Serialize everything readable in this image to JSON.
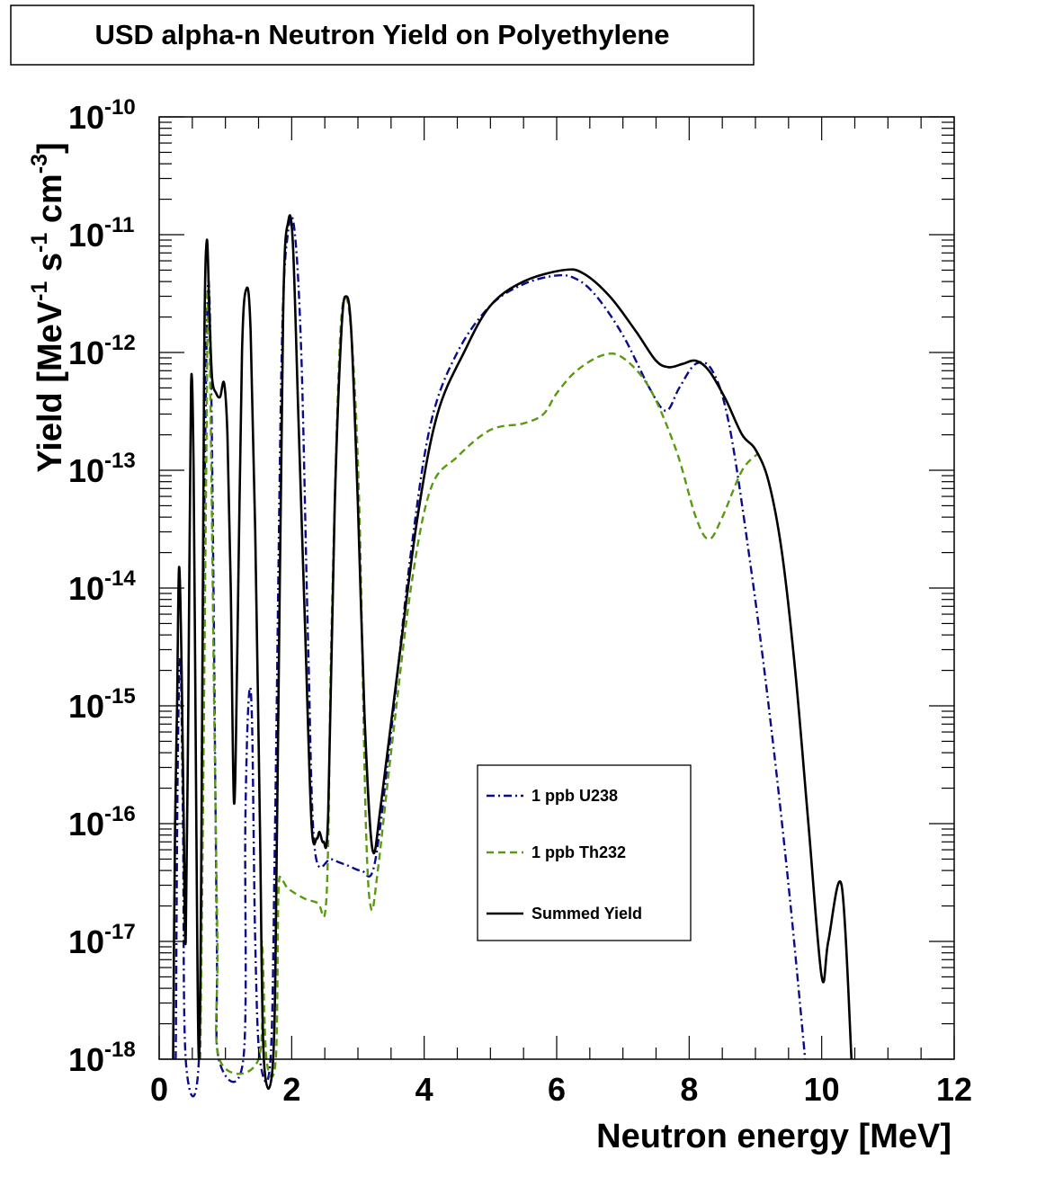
{
  "chart_data": {
    "type": "line",
    "title": "USD alpha-n Neutron Yield on Polyethylene",
    "xlabel": "Neutron energy [MeV]",
    "ylabel": {
      "base": "Yield [MeV",
      "e1": "-1",
      "mid1": " s",
      "e2": "-1",
      "mid2": " cm",
      "e3": "-3",
      "end": "]"
    },
    "xlim": [
      0,
      12
    ],
    "ylim": [
      1e-18,
      1e-10
    ],
    "yscale": "log",
    "grid": false,
    "legend_position": "center-right",
    "x_ticks": [
      {
        "value": 0,
        "label": "0"
      },
      {
        "value": 2,
        "label": "2"
      },
      {
        "value": 4,
        "label": "4"
      },
      {
        "value": 6,
        "label": "6"
      },
      {
        "value": 8,
        "label": "8"
      },
      {
        "value": 10,
        "label": "10"
      },
      {
        "value": 12,
        "label": "12"
      }
    ],
    "y_ticks": [
      {
        "exp": -18,
        "base": "10",
        "sup": "-18"
      },
      {
        "exp": -17,
        "base": "10",
        "sup": "-17"
      },
      {
        "exp": -16,
        "base": "10",
        "sup": "-16"
      },
      {
        "exp": -15,
        "base": "10",
        "sup": "-15"
      },
      {
        "exp": -14,
        "base": "10",
        "sup": "-14"
      },
      {
        "exp": -13,
        "base": "10",
        "sup": "-13"
      },
      {
        "exp": -12,
        "base": "10",
        "sup": "-12"
      },
      {
        "exp": -11,
        "base": "10",
        "sup": "-11"
      },
      {
        "exp": -10,
        "base": "10",
        "sup": "-10"
      }
    ],
    "series": [
      {
        "name": "1 ppb U238",
        "color": "#0a0a8c",
        "style": "dashdot",
        "points": [
          [
            0.25,
            1e-18
          ],
          [
            0.28,
            3e-16
          ],
          [
            0.32,
            2.5e-15
          ],
          [
            0.36,
            1e-16
          ],
          [
            0.4,
            1e-18
          ],
          [
            0.6,
            1e-18
          ],
          [
            0.65,
            1e-15
          ],
          [
            0.7,
            3e-13
          ],
          [
            0.74,
            4e-12
          ],
          [
            0.78,
            8e-13
          ],
          [
            0.82,
            1e-14
          ],
          [
            0.87,
            1e-17
          ],
          [
            0.9,
            1e-18
          ],
          [
            1.27,
            1e-18
          ],
          [
            1.3,
            1e-16
          ],
          [
            1.35,
            1.1e-15
          ],
          [
            1.4,
            8e-16
          ],
          [
            1.45,
            1e-17
          ],
          [
            1.52,
            1e-18
          ],
          [
            1.68,
            1e-18
          ],
          [
            1.75,
            1e-16
          ],
          [
            1.85,
            1e-12
          ],
          [
            1.95,
            1.1e-11
          ],
          [
            2.05,
            1e-11
          ],
          [
            2.15,
            8e-13
          ],
          [
            2.25,
            3e-15
          ],
          [
            2.35,
            6e-17
          ],
          [
            2.6,
            5e-17
          ],
          [
            2.85,
            4.4e-17
          ],
          [
            3.05,
            4e-17
          ],
          [
            3.25,
            4.5e-17
          ],
          [
            3.5,
            6e-16
          ],
          [
            3.8,
            2e-14
          ],
          [
            4.1,
            2.5e-13
          ],
          [
            4.5,
            1e-12
          ],
          [
            5.0,
            2.5e-12
          ],
          [
            5.5,
            3.8e-12
          ],
          [
            6.0,
            4.5e-12
          ],
          [
            6.3,
            4.2e-12
          ],
          [
            6.6,
            3e-12
          ],
          [
            7.0,
            1.4e-12
          ],
          [
            7.4,
            5e-13
          ],
          [
            7.65,
            3.2e-13
          ],
          [
            7.85,
            5e-13
          ],
          [
            8.1,
            8e-13
          ],
          [
            8.35,
            7e-13
          ],
          [
            8.6,
            2.5e-13
          ],
          [
            8.9,
            2e-14
          ],
          [
            9.2,
            1e-15
          ],
          [
            9.5,
            3e-17
          ],
          [
            9.75,
            1e-18
          ]
        ]
      },
      {
        "name": "1 ppb Th232",
        "color": "#5a9a12",
        "style": "dashed",
        "points": [
          [
            0.62,
            1e-18
          ],
          [
            0.66,
            1e-16
          ],
          [
            0.71,
            1e-13
          ],
          [
            0.74,
            3.5e-12
          ],
          [
            0.78,
            2e-13
          ],
          [
            0.83,
            1e-15
          ],
          [
            0.88,
            1e-17
          ],
          [
            0.91,
            1e-18
          ],
          [
            1.5,
            1e-18
          ],
          [
            1.55,
            1e-17
          ],
          [
            1.62,
            1e-18
          ],
          [
            1.76,
            1e-18
          ],
          [
            1.8,
            2.5e-17
          ],
          [
            1.85,
            3.3e-17
          ],
          [
            1.95,
            2.8e-17
          ],
          [
            2.2,
            2.3e-17
          ],
          [
            2.4,
            2.1e-17
          ],
          [
            2.5,
            1.7e-17
          ],
          [
            2.55,
            6.5e-17
          ],
          [
            2.6,
            4e-15
          ],
          [
            2.72,
            1e-12
          ],
          [
            2.82,
            2.9e-12
          ],
          [
            2.92,
            1e-12
          ],
          [
            3.02,
            5e-14
          ],
          [
            3.12,
            1e-16
          ],
          [
            3.2,
            1.9e-17
          ],
          [
            3.3,
            4e-17
          ],
          [
            3.5,
            4e-16
          ],
          [
            3.8,
            1e-14
          ],
          [
            4.1,
            7e-14
          ],
          [
            4.5,
            1.3e-13
          ],
          [
            5.0,
            2.2e-13
          ],
          [
            5.5,
            2.5e-13
          ],
          [
            5.8,
            3e-13
          ],
          [
            6.0,
            4.5e-13
          ],
          [
            6.3,
            7e-13
          ],
          [
            6.7,
            9.5e-13
          ],
          [
            7.0,
            9e-13
          ],
          [
            7.4,
            5e-13
          ],
          [
            7.8,
            1.5e-13
          ],
          [
            8.1,
            4e-14
          ],
          [
            8.3,
            2.6e-14
          ],
          [
            8.5,
            4e-14
          ],
          [
            8.8,
            1e-13
          ],
          [
            9.05,
            1.4e-13
          ]
        ]
      },
      {
        "name": "Summed Yield",
        "color": "#000000",
        "style": "solid",
        "points": [
          [
            0.21,
            1e-18
          ],
          [
            0.24,
            1e-16
          ],
          [
            0.27,
            1e-15
          ],
          [
            0.3,
            1.5e-14
          ],
          [
            0.34,
            2e-15
          ],
          [
            0.37,
            1e-16
          ],
          [
            0.4,
            1e-17
          ],
          [
            0.44,
            1e-15
          ],
          [
            0.48,
            5e-13
          ],
          [
            0.52,
            1e-13
          ],
          [
            0.56,
            1e-16
          ],
          [
            0.6,
            1e-18
          ],
          [
            0.64,
            1e-16
          ],
          [
            0.68,
            1e-12
          ],
          [
            0.72,
            9e-12
          ],
          [
            0.76,
            2e-12
          ],
          [
            0.8,
            6e-13
          ],
          [
            0.86,
            4.5e-13
          ],
          [
            0.92,
            4.2e-13
          ],
          [
            0.98,
            5.5e-13
          ],
          [
            1.03,
            2e-13
          ],
          [
            1.08,
            1e-14
          ],
          [
            1.13,
            1.5e-16
          ],
          [
            1.18,
            3e-15
          ],
          [
            1.25,
            1e-12
          ],
          [
            1.32,
            3.5e-12
          ],
          [
            1.38,
            1.5e-12
          ],
          [
            1.45,
            3e-14
          ],
          [
            1.52,
            1e-16
          ],
          [
            1.58,
            1e-18
          ],
          [
            1.72,
            1e-18
          ],
          [
            1.78,
            1e-16
          ],
          [
            1.87,
            2e-12
          ],
          [
            1.95,
            1.3e-11
          ],
          [
            2.02,
            8e-12
          ],
          [
            2.1,
            3e-13
          ],
          [
            2.2,
            5e-15
          ],
          [
            2.3,
            1e-16
          ],
          [
            2.38,
            7.5e-17
          ],
          [
            2.42,
            8.5e-17
          ],
          [
            2.48,
            7e-17
          ],
          [
            2.55,
            1.2e-16
          ],
          [
            2.65,
            5e-14
          ],
          [
            2.75,
            1.5e-12
          ],
          [
            2.82,
            3e-12
          ],
          [
            2.9,
            1.5e-12
          ],
          [
            3.0,
            5e-14
          ],
          [
            3.1,
            8e-16
          ],
          [
            3.22,
            6e-17
          ],
          [
            3.35,
            1.5e-16
          ],
          [
            3.6,
            2e-15
          ],
          [
            3.9,
            4e-14
          ],
          [
            4.2,
            3e-13
          ],
          [
            4.6,
            1e-12
          ],
          [
            5.0,
            2.5e-12
          ],
          [
            5.5,
            4e-12
          ],
          [
            6.1,
            5e-12
          ],
          [
            6.4,
            4.7e-12
          ],
          [
            6.8,
            3e-12
          ],
          [
            7.2,
            1.5e-12
          ],
          [
            7.5,
            8.5e-13
          ],
          [
            7.7,
            7.5e-13
          ],
          [
            7.9,
            8e-13
          ],
          [
            8.1,
            8.5e-13
          ],
          [
            8.3,
            7e-13
          ],
          [
            8.55,
            4e-13
          ],
          [
            8.8,
            2e-13
          ],
          [
            9.0,
            1.5e-13
          ],
          [
            9.2,
            8e-14
          ],
          [
            9.4,
            2e-14
          ],
          [
            9.6,
            2e-15
          ],
          [
            9.8,
            1e-16
          ],
          [
            10.0,
            5e-18
          ],
          [
            10.1,
            1e-17
          ],
          [
            10.3,
            3e-17
          ],
          [
            10.45,
            1e-18
          ]
        ]
      }
    ]
  }
}
